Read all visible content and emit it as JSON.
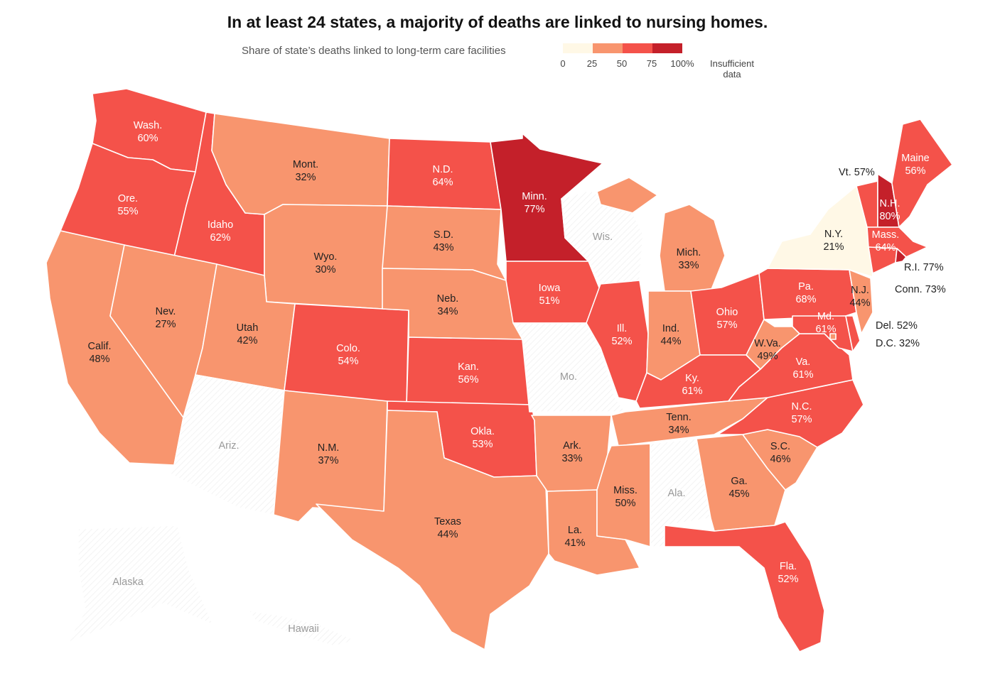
{
  "title": "In at least 24 states, a majority of deaths are linked to nursing homes.",
  "legend": {
    "label": "Share of state’s deaths linked to long-term care facilities",
    "ticks": [
      "0",
      "25",
      "50",
      "75",
      "100%"
    ],
    "insufficient": [
      "Insufficient",
      "data"
    ],
    "colors": {
      "c0": "#fff8e6",
      "c1": "#f8956e",
      "c2": "#f4524a",
      "c3": "#c4202a",
      "none": "#ffffff"
    }
  },
  "states": {
    "wa": {
      "name": "Wash.",
      "value": "60%"
    },
    "or": {
      "name": "Ore.",
      "value": "55%"
    },
    "ca": {
      "name": "Calif.",
      "value": "48%"
    },
    "id": {
      "name": "Idaho",
      "value": "62%"
    },
    "nv": {
      "name": "Nev.",
      "value": "27%"
    },
    "mt": {
      "name": "Mont.",
      "value": "32%"
    },
    "wy": {
      "name": "Wyo.",
      "value": "30%"
    },
    "ut": {
      "name": "Utah",
      "value": "42%"
    },
    "az": {
      "name": "Ariz."
    },
    "co": {
      "name": "Colo.",
      "value": "54%"
    },
    "nm": {
      "name": "N.M.",
      "value": "37%"
    },
    "nd": {
      "name": "N.D.",
      "value": "64%"
    },
    "sd": {
      "name": "S.D.",
      "value": "43%"
    },
    "ne": {
      "name": "Neb.",
      "value": "34%"
    },
    "ks": {
      "name": "Kan.",
      "value": "56%"
    },
    "ok": {
      "name": "Okla.",
      "value": "53%"
    },
    "tx": {
      "name": "Texas",
      "value": "44%"
    },
    "mn": {
      "name": "Minn.",
      "value": "77%"
    },
    "ia": {
      "name": "Iowa",
      "value": "51%"
    },
    "mo": {
      "name": "Mo."
    },
    "ar": {
      "name": "Ark.",
      "value": "33%"
    },
    "la": {
      "name": "La.",
      "value": "41%"
    },
    "wi": {
      "name": "Wis."
    },
    "il": {
      "name": "Ill.",
      "value": "52%"
    },
    "mi": {
      "name": "Mich.",
      "value": "33%"
    },
    "in": {
      "name": "Ind.",
      "value": "44%"
    },
    "oh": {
      "name": "Ohio",
      "value": "57%"
    },
    "ky": {
      "name": "Ky.",
      "value": "61%"
    },
    "tn": {
      "name": "Tenn.",
      "value": "34%"
    },
    "ms": {
      "name": "Miss.",
      "value": "50%"
    },
    "al": {
      "name": "Ala."
    },
    "ga": {
      "name": "Ga.",
      "value": "45%"
    },
    "fl": {
      "name": "Fla.",
      "value": "52%"
    },
    "sc": {
      "name": "S.C.",
      "value": "46%"
    },
    "nc": {
      "name": "N.C.",
      "value": "57%"
    },
    "va": {
      "name": "Va.",
      "value": "61%"
    },
    "wv": {
      "name": "W.Va.",
      "value": "49%"
    },
    "pa": {
      "name": "Pa.",
      "value": "68%"
    },
    "md": {
      "name": "Md.",
      "value": "61%"
    },
    "nj": {
      "name": "N.J.",
      "value": "44%"
    },
    "ny": {
      "name": "N.Y.",
      "value": "21%"
    },
    "vt": {
      "name": "Vt.",
      "value": "57%"
    },
    "nh": {
      "name": "N.H.",
      "value": "80%"
    },
    "me": {
      "name": "Maine",
      "value": "56%"
    },
    "ma": {
      "name": "Mass.",
      "value": "64%"
    },
    "ri": {
      "name": "R.I.",
      "value": "77%"
    },
    "ct": {
      "name": "Conn.",
      "value": "73%"
    },
    "de": {
      "name": "Del.",
      "value": "52%"
    },
    "dc": {
      "name": "D.C.",
      "value": "32%"
    },
    "ak": {
      "name": "Alaska"
    },
    "hi": {
      "name": "Hawaii"
    }
  }
}
